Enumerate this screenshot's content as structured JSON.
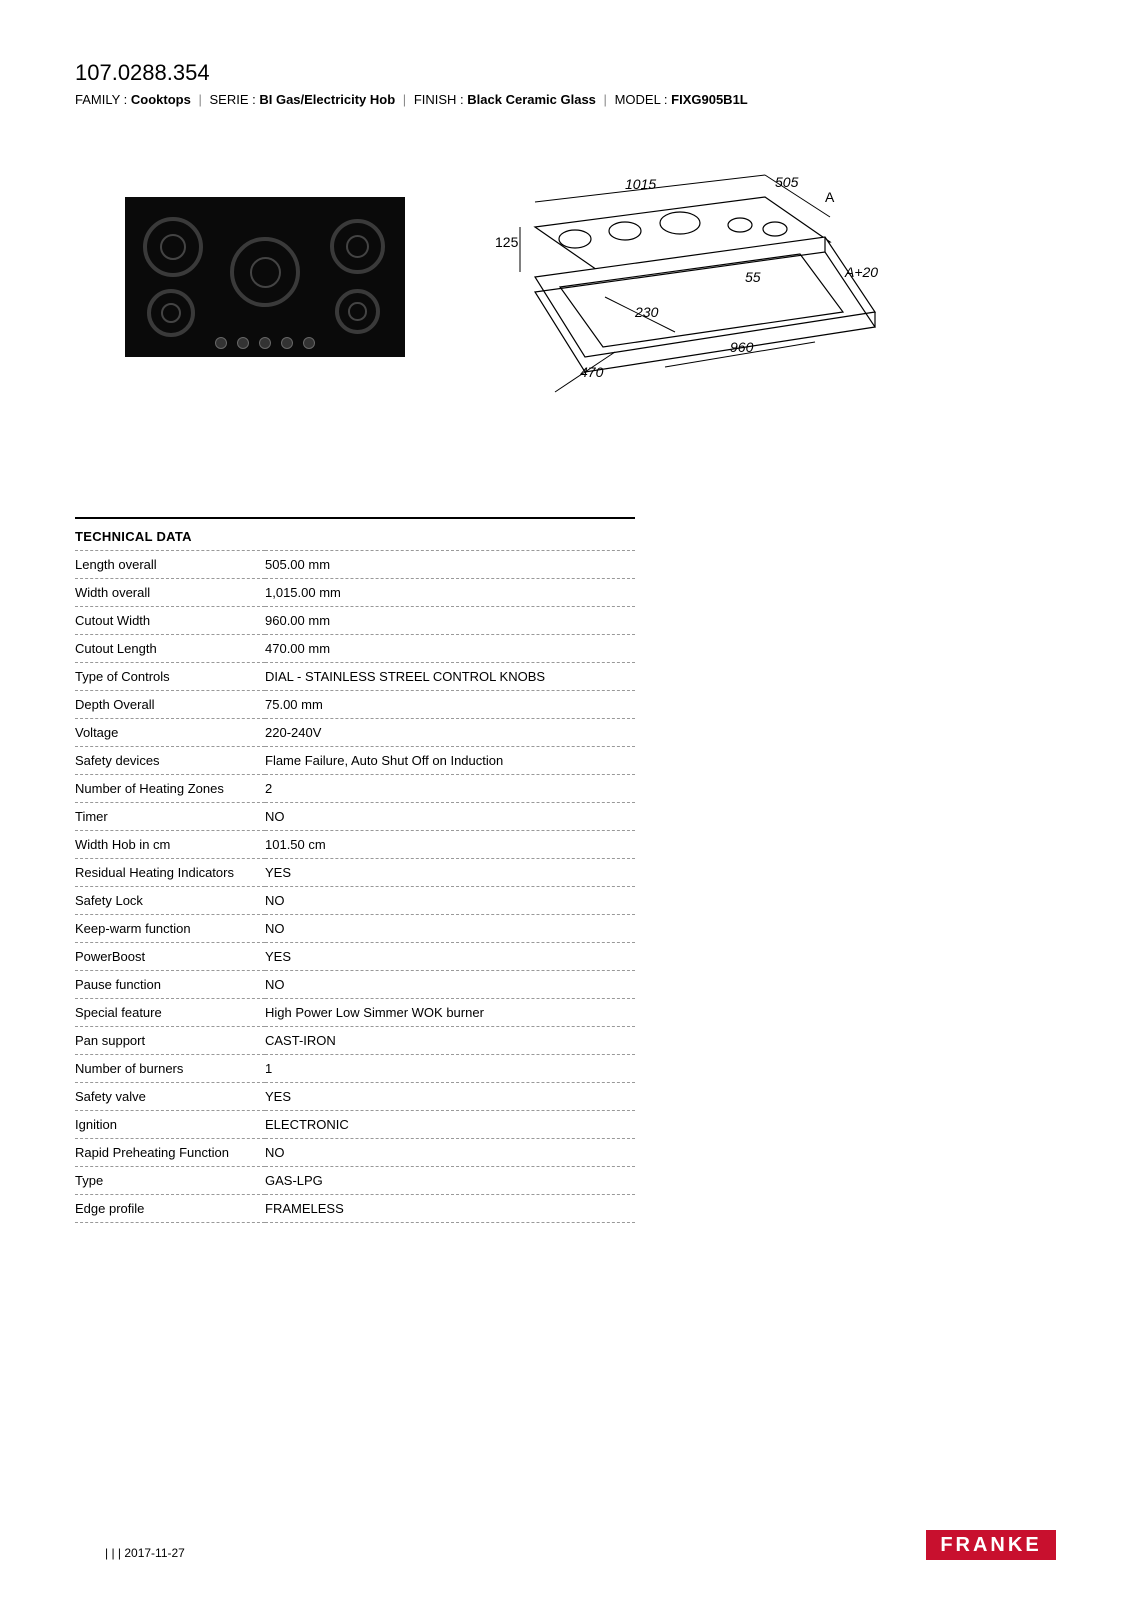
{
  "header": {
    "product_id": "107.0288.354",
    "meta": [
      {
        "label": "FAMILY",
        "value": "Cooktops"
      },
      {
        "label": "SERIE",
        "value": "BI Gas/Electricity Hob"
      },
      {
        "label": "FINISH",
        "value": "Black Ceramic Glass"
      },
      {
        "label": "MODEL",
        "value": "FIXG905B1L"
      }
    ]
  },
  "drawing": {
    "dims": {
      "d1015": "1015",
      "d505": "505",
      "d125": "125",
      "dA": "A",
      "dA20": "A+20",
      "d55": "55",
      "d230": "230",
      "d960": "960",
      "d470": "470"
    },
    "stroke": "#000000",
    "fill": "#ffffff",
    "fontsize": 14
  },
  "section": {
    "title": "TECHNICAL DATA"
  },
  "specs": [
    {
      "k": "Length overall",
      "v": "505.00 mm"
    },
    {
      "k": "Width overall",
      "v": "1,015.00 mm"
    },
    {
      "k": "Cutout Width",
      "v": "960.00 mm"
    },
    {
      "k": "Cutout Length",
      "v": "470.00 mm"
    },
    {
      "k": "Type of Controls",
      "v": "DIAL - STAINLESS STREEL CONTROL KNOBS"
    },
    {
      "k": "Depth Overall",
      "v": "75.00 mm"
    },
    {
      "k": "Voltage",
      "v": "220-240V"
    },
    {
      "k": "Safety devices",
      "v": "Flame Failure, Auto Shut Off on Induction"
    },
    {
      "k": "Number of Heating Zones",
      "v": "2"
    },
    {
      "k": "Timer",
      "v": "NO"
    },
    {
      "k": "Width Hob in cm",
      "v": "101.50 cm"
    },
    {
      "k": "Residual Heating Indicators",
      "v": "YES"
    },
    {
      "k": "Safety Lock",
      "v": "NO"
    },
    {
      "k": "Keep-warm function",
      "v": "NO"
    },
    {
      "k": "PowerBoost",
      "v": "YES"
    },
    {
      "k": "Pause function",
      "v": "NO"
    },
    {
      "k": "Special feature",
      "v": "High Power Low Simmer WOK burner"
    },
    {
      "k": "Pan support",
      "v": "CAST-IRON"
    },
    {
      "k": "Number of burners",
      "v": "1"
    },
    {
      "k": "Safety valve",
      "v": "YES"
    },
    {
      "k": "Ignition",
      "v": "ELECTRONIC"
    },
    {
      "k": "Rapid Preheating Function",
      "v": "NO"
    },
    {
      "k": "Type",
      "v": "GAS-LPG"
    },
    {
      "k": "Edge profile",
      "v": "FRAMELESS"
    }
  ],
  "footer": {
    "date_prefix": "| | | ",
    "date": "2017-11-27",
    "brand": "FRANKE",
    "brand_bg": "#c8102e",
    "brand_fg": "#ffffff"
  }
}
